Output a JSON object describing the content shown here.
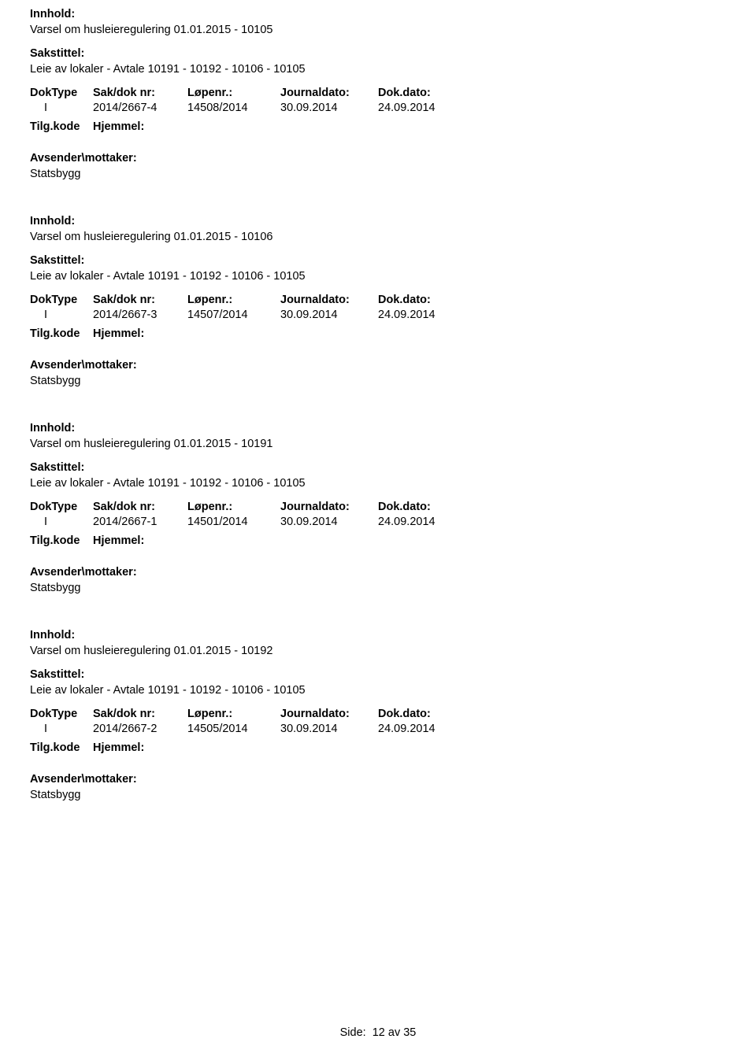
{
  "labels": {
    "innhold": "Innhold:",
    "sakstittel": "Sakstittel:",
    "doktype": "DokType",
    "sakdoknr": "Sak/dok nr:",
    "lopenr": "Løpenr.:",
    "journaldato": "Journaldato:",
    "dokdato": "Dok.dato:",
    "tilgkode": "Tilg.kode",
    "hjemmel": "Hjemmel:",
    "avsender": "Avsender\\mottaker:"
  },
  "records": [
    {
      "innhold": "Varsel om husleieregulering 01.01.2015 - 10105",
      "sakstittel": "Leie av lokaler - Avtale 10191 - 10192 - 10106 - 10105",
      "doktype": "I",
      "sakdoknr": "2014/2667-4",
      "lopenr": "14508/2014",
      "journaldato": "30.09.2014",
      "dokdato": "24.09.2014",
      "avsender": "Statsbygg"
    },
    {
      "innhold": "Varsel om husleieregulering 01.01.2015 - 10106",
      "sakstittel": "Leie av lokaler - Avtale 10191 - 10192 - 10106 - 10105",
      "doktype": "I",
      "sakdoknr": "2014/2667-3",
      "lopenr": "14507/2014",
      "journaldato": "30.09.2014",
      "dokdato": "24.09.2014",
      "avsender": "Statsbygg"
    },
    {
      "innhold": "Varsel om husleieregulering 01.01.2015 - 10191",
      "sakstittel": "Leie av lokaler - Avtale 10191 - 10192 - 10106 - 10105",
      "doktype": "I",
      "sakdoknr": "2014/2667-1",
      "lopenr": "14501/2014",
      "journaldato": "30.09.2014",
      "dokdato": "24.09.2014",
      "avsender": "Statsbygg"
    },
    {
      "innhold": "Varsel om husleieregulering 01.01.2015 - 10192",
      "sakstittel": "Leie av lokaler - Avtale 10191 - 10192 - 10106 - 10105",
      "doktype": "I",
      "sakdoknr": "2014/2667-2",
      "lopenr": "14505/2014",
      "journaldato": "30.09.2014",
      "dokdato": "24.09.2014",
      "avsender": "Statsbygg"
    }
  ],
  "footer": {
    "side_label": "Side:",
    "page_current": "12",
    "page_av": "av",
    "page_total": "35"
  }
}
